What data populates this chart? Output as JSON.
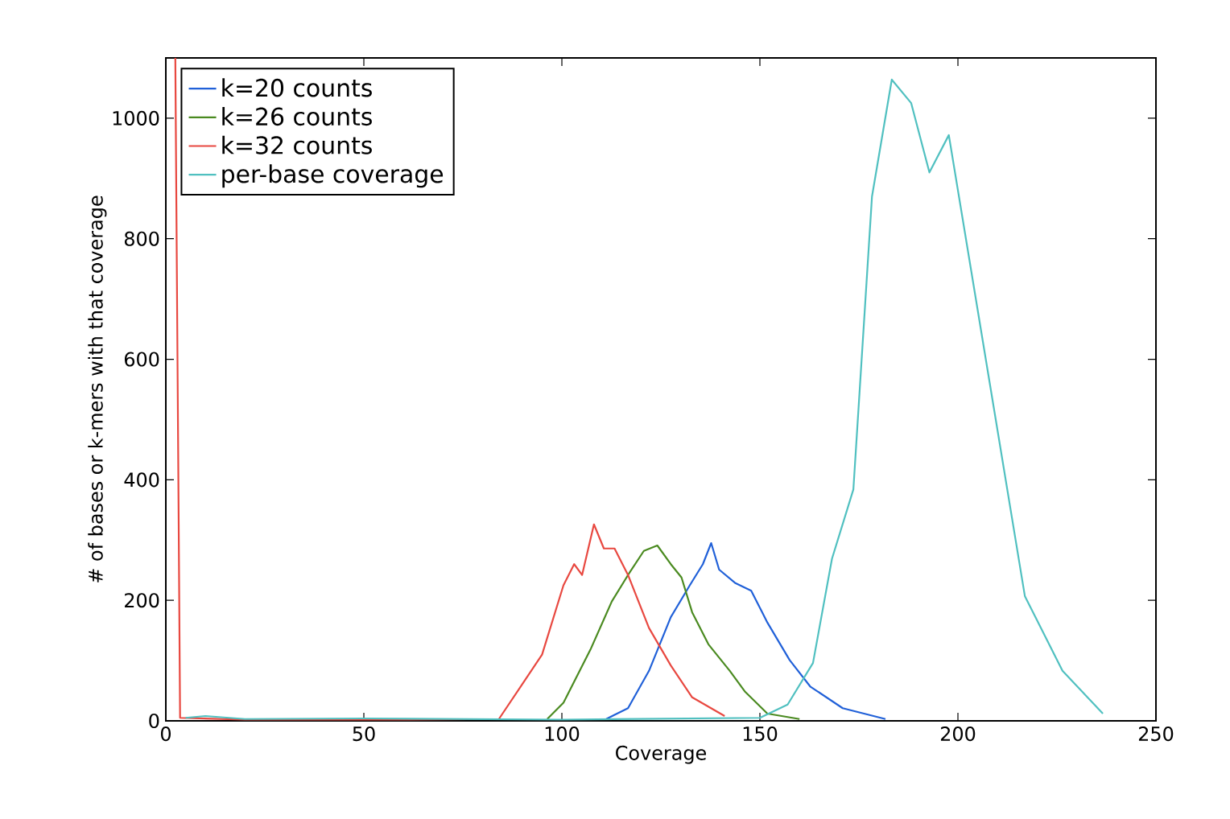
{
  "chart_data": {
    "type": "line",
    "xlabel": "Coverage",
    "ylabel": "# of bases or k-mers with that coverage",
    "xlim": [
      0,
      250
    ],
    "ylim": [
      0,
      1100
    ],
    "xticks": [
      0,
      50,
      100,
      150,
      200,
      250
    ],
    "yticks": [
      0,
      200,
      400,
      600,
      800,
      1000
    ],
    "legend": "top left",
    "grid": false,
    "marker": "none",
    "line_style": "solid",
    "series": [
      {
        "name": "k=20 counts",
        "color": "#2060d8",
        "x": [
          111.2,
          116.7,
          122,
          127.5,
          132.3,
          135.6,
          137.7,
          139.7,
          143.7,
          147.8,
          151.9,
          157.5,
          162.7,
          170.9,
          181.7
        ],
        "values": [
          3,
          21,
          83,
          172,
          225,
          260,
          295,
          251,
          229,
          216,
          163,
          101,
          57,
          21,
          3
        ]
      },
      {
        "name": "k=26 counts",
        "color": "#4a8a20",
        "x": [
          96.3,
          100.4,
          107.2,
          112.6,
          116.7,
          120.7,
          124.1,
          127.5,
          130.2,
          132.9,
          137,
          142.4,
          146.3,
          151.9,
          160
        ],
        "values": [
          3,
          30,
          118,
          198,
          242,
          282,
          291,
          260,
          238,
          180,
          127,
          83,
          48,
          12,
          3
        ]
      },
      {
        "name": "k=32 counts",
        "color": "#e84840",
        "x": [
          2.4,
          3.6,
          20,
          60,
          84.1,
          89.6,
          95,
          100.4,
          103.1,
          105.1,
          108.1,
          110.6,
          113.3,
          116.7,
          122,
          127.5,
          132.9,
          141.1
        ],
        "values": [
          1100,
          5,
          2,
          2,
          3,
          57,
          110,
          225,
          260,
          242,
          326,
          286,
          286,
          242,
          154,
          92,
          39,
          8
        ]
      },
      {
        "name": "per-base coverage",
        "color": "#50c0c0",
        "x": [
          5,
          10,
          20,
          50,
          100,
          150,
          157,
          163.4,
          168.2,
          173.6,
          178.3,
          183.3,
          188.2,
          192.8,
          197.7,
          216.9,
          226.4,
          236.6
        ],
        "values": [
          5,
          8,
          3,
          4,
          2,
          5,
          27,
          96,
          269,
          384,
          870,
          1064,
          1025,
          910,
          972,
          207,
          83,
          12
        ]
      }
    ]
  }
}
